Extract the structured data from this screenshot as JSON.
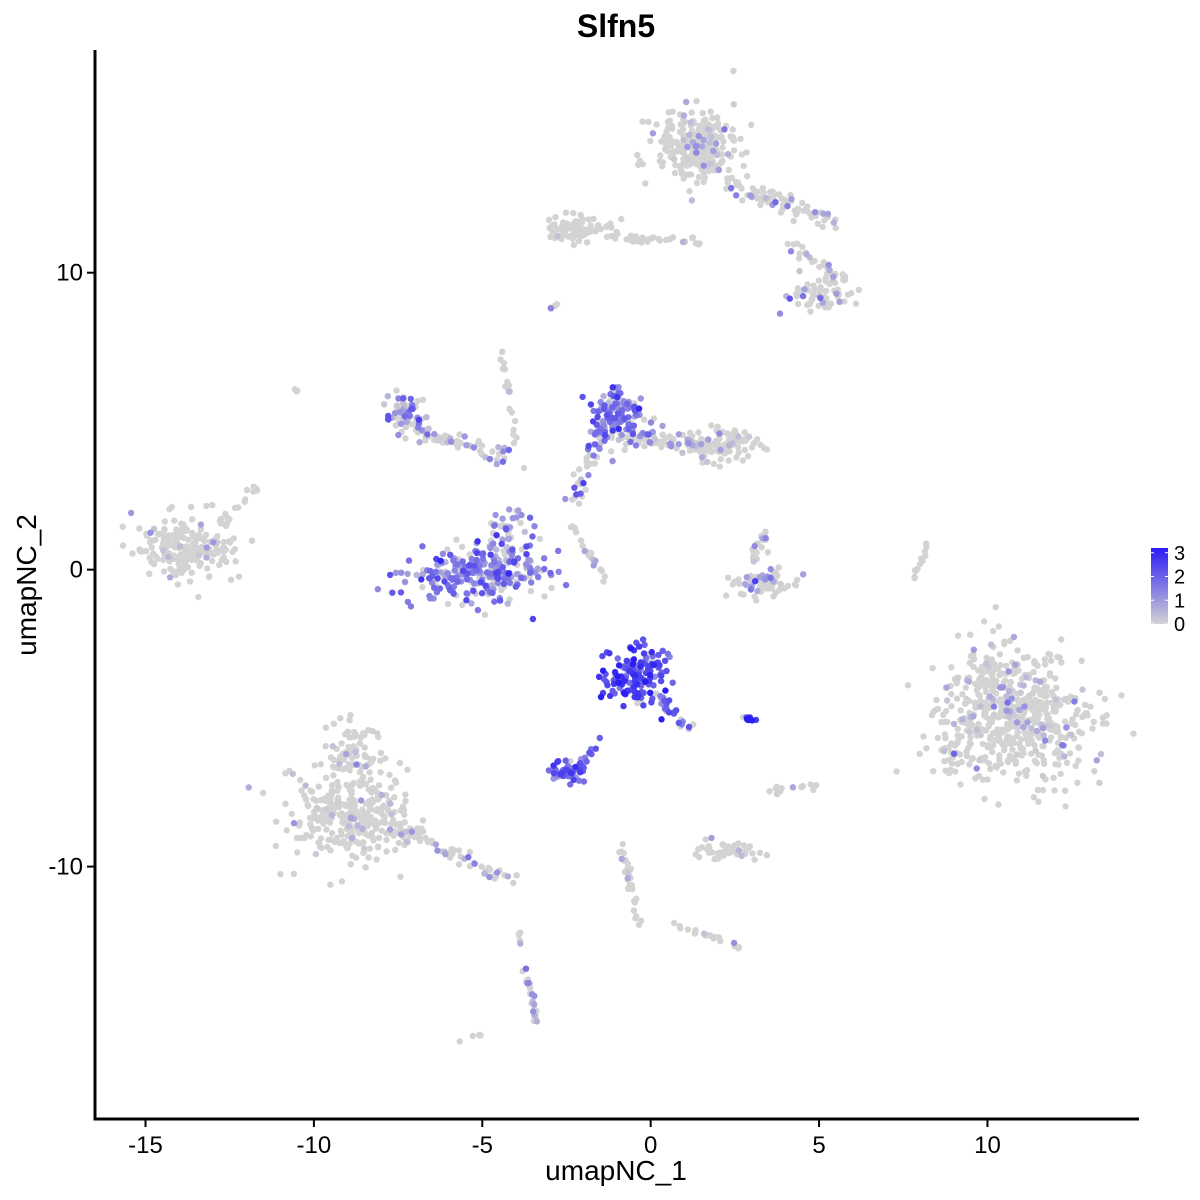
{
  "chart_data": {
    "type": "scatter",
    "title": "Slfn5",
    "xlabel": "umapNC_1",
    "ylabel": "umapNC_2",
    "xlim": [
      -16.5,
      14.5
    ],
    "ylim": [
      -18.5,
      17.5
    ],
    "x_ticks": [
      {
        "value": -15,
        "label": "-15"
      },
      {
        "value": -10,
        "label": "-10"
      },
      {
        "value": -5,
        "label": "-5"
      },
      {
        "value": 0,
        "label": "0"
      },
      {
        "value": 5,
        "label": "5"
      },
      {
        "value": 10,
        "label": "10"
      }
    ],
    "y_ticks": [
      {
        "value": 10,
        "label": "10"
      },
      {
        "value": 0,
        "label": "0"
      },
      {
        "value": -10,
        "label": "-10"
      }
    ],
    "grid": false,
    "legend": {
      "placement": "right",
      "type": "colorbar",
      "range": [
        0,
        3.2
      ],
      "ticks": [
        {
          "value": 3,
          "label": "3"
        },
        {
          "value": 2,
          "label": "2"
        },
        {
          "value": 1,
          "label": "1"
        },
        {
          "value": 0,
          "label": "0"
        }
      ],
      "low_color": "#d3d3d3",
      "high_color": "#2a1cf5"
    },
    "clusters": [
      {
        "id": "left-blob",
        "cx": -13.8,
        "cy": 0.8,
        "rx": 1.4,
        "ry": 0.9,
        "n": 200,
        "expr": 0.1,
        "kind": "blob"
      },
      {
        "id": "left-blob-tail",
        "x0": -12.8,
        "y0": 1.5,
        "x1": -11.7,
        "y1": 2.8,
        "n": 18,
        "expr": 0.05,
        "kind": "line",
        "w": 0.2
      },
      {
        "id": "bottom-left-blob",
        "cx": -9.0,
        "cy": -8.3,
        "rx": 1.6,
        "ry": 1.4,
        "n": 300,
        "expr": 0.1,
        "kind": "blob"
      },
      {
        "id": "bottom-left-top",
        "cx": -8.8,
        "cy": -6.2,
        "rx": 0.8,
        "ry": 1.0,
        "n": 70,
        "expr": 0.08,
        "kind": "blob"
      },
      {
        "id": "bottom-left-tail",
        "x0": -7.8,
        "y0": -8.5,
        "x1": -4.3,
        "y1": -10.4,
        "n": 70,
        "expr": 0.6,
        "kind": "line",
        "w": 0.35
      },
      {
        "id": "curved-blob",
        "cx": -5.2,
        "cy": -0.2,
        "rx": 1.8,
        "ry": 0.8,
        "n": 260,
        "expr": 1.5,
        "kind": "blob"
      },
      {
        "id": "curved-blob-right",
        "cx": -4.3,
        "cy": 1.0,
        "rx": 0.7,
        "ry": 1.0,
        "n": 60,
        "expr": 1.2,
        "kind": "blob"
      },
      {
        "id": "upper-left-arm",
        "cx": -7.3,
        "cy": 5.2,
        "rx": 0.6,
        "ry": 0.7,
        "n": 60,
        "expr": 1.1,
        "kind": "blob"
      },
      {
        "id": "upper-left-arm-line",
        "x0": -7.0,
        "y0": 4.8,
        "x1": -4.3,
        "y1": 3.7,
        "n": 60,
        "expr": 0.6,
        "kind": "line",
        "w": 0.35
      },
      {
        "id": "upper-left-stem",
        "x0": -4.5,
        "y0": 7.5,
        "x1": -3.8,
        "y1": 3.3,
        "n": 20,
        "expr": 0.2,
        "kind": "line",
        "w": 0.15
      },
      {
        "id": "center-top",
        "cx": -1.0,
        "cy": 5.3,
        "rx": 0.7,
        "ry": 0.9,
        "n": 130,
        "expr": 1.5,
        "kind": "blob"
      },
      {
        "id": "center-top-right",
        "cx": 2.1,
        "cy": 4.2,
        "rx": 1.0,
        "ry": 0.5,
        "n": 110,
        "expr": 0.2,
        "kind": "blob"
      },
      {
        "id": "center-top-arm",
        "x0": -1.0,
        "y0": 4.5,
        "x1": 1.5,
        "y1": 4.2,
        "n": 60,
        "expr": 0.9,
        "kind": "line",
        "w": 0.4
      },
      {
        "id": "center-top-down",
        "x0": -1.5,
        "y0": 4.8,
        "x1": -2.3,
        "y1": 2.3,
        "n": 40,
        "expr": 1.3,
        "kind": "line",
        "w": 0.3
      },
      {
        "id": "center-streak",
        "x0": -2.3,
        "y0": 1.5,
        "x1": -1.3,
        "y1": -0.5,
        "n": 18,
        "expr": 0.5,
        "kind": "line",
        "w": 0.1
      },
      {
        "id": "right-small",
        "cx": 3.3,
        "cy": -0.4,
        "rx": 0.9,
        "ry": 0.5,
        "n": 70,
        "expr": 0.6,
        "kind": "blob"
      },
      {
        "id": "right-small-up",
        "x0": 3.0,
        "y0": 0.3,
        "x1": 3.4,
        "y1": 1.3,
        "n": 20,
        "expr": 0.5,
        "kind": "line",
        "w": 0.2
      },
      {
        "id": "far-right-blob",
        "cx": 10.7,
        "cy": -4.9,
        "rx": 2.0,
        "ry": 2.0,
        "n": 600,
        "expr": 0.3,
        "kind": "blob"
      },
      {
        "id": "far-right-streak",
        "x0": 7.8,
        "y0": -0.3,
        "x1": 8.2,
        "y1": 0.9,
        "n": 12,
        "expr": 0.05,
        "kind": "line",
        "w": 0.08
      },
      {
        "id": "top-right-main",
        "cx": 1.3,
        "cy": 14.2,
        "rx": 1.1,
        "ry": 1.1,
        "n": 280,
        "expr": 0.3,
        "kind": "blob"
      },
      {
        "id": "top-right-arm",
        "x0": 2.2,
        "y0": 13.0,
        "x1": 5.6,
        "y1": 11.7,
        "n": 70,
        "expr": 0.4,
        "kind": "line",
        "w": 0.4
      },
      {
        "id": "top-right-lower",
        "cx": 5.0,
        "cy": 9.3,
        "rx": 0.9,
        "ry": 0.6,
        "n": 60,
        "expr": 0.6,
        "kind": "blob"
      },
      {
        "id": "top-right-line",
        "x0": 4.2,
        "y0": 10.9,
        "x1": 5.9,
        "y1": 9.6,
        "n": 30,
        "expr": 0.3,
        "kind": "line",
        "w": 0.3
      },
      {
        "id": "top-middle-arm",
        "cx": -2.1,
        "cy": 11.5,
        "rx": 0.9,
        "ry": 0.4,
        "n": 80,
        "expr": 0.1,
        "kind": "blob"
      },
      {
        "id": "top-middle-link",
        "x0": -1.0,
        "y0": 11.2,
        "x1": 1.6,
        "y1": 11.0,
        "n": 30,
        "expr": 0.1,
        "kind": "line",
        "w": 0.2
      },
      {
        "id": "lower-center-blob",
        "cx": -0.5,
        "cy": -3.6,
        "rx": 0.8,
        "ry": 0.9,
        "n": 150,
        "expr": 2.3,
        "kind": "blob"
      },
      {
        "id": "lower-center-arm",
        "x0": 0.2,
        "y0": -4.2,
        "x1": 1.2,
        "y1": -5.5,
        "n": 25,
        "expr": 1.8,
        "kind": "line",
        "w": 0.2
      },
      {
        "id": "lower-left-small",
        "cx": -2.5,
        "cy": -6.8,
        "rx": 0.5,
        "ry": 0.3,
        "n": 50,
        "expr": 2.0,
        "kind": "blob"
      },
      {
        "id": "lower-left-small-arm",
        "x0": -2.1,
        "y0": -6.6,
        "x1": -1.5,
        "y1": -5.7,
        "n": 12,
        "expr": 1.6,
        "kind": "line",
        "w": 0.15
      },
      {
        "id": "tiny-bright",
        "cx": 2.9,
        "cy": -5.0,
        "rx": 0.15,
        "ry": 0.08,
        "n": 10,
        "expr": 3.0,
        "kind": "blob"
      },
      {
        "id": "small-blob-mid",
        "cx": 2.3,
        "cy": -9.5,
        "rx": 0.8,
        "ry": 0.3,
        "n": 50,
        "expr": 0.2,
        "kind": "blob"
      },
      {
        "id": "bottom-streak-1",
        "x0": -0.9,
        "y0": -9.2,
        "x1": -0.3,
        "y1": -12.0,
        "n": 30,
        "expr": 0.4,
        "kind": "line",
        "w": 0.15
      },
      {
        "id": "bottom-streak-2",
        "x0": 0.4,
        "y0": -11.8,
        "x1": 2.6,
        "y1": -12.7,
        "n": 20,
        "expr": 0.15,
        "kind": "line",
        "w": 0.15
      },
      {
        "id": "bottom-streak-3",
        "x0": -3.7,
        "y0": -13.5,
        "x1": -3.4,
        "y1": -15.2,
        "n": 30,
        "expr": 0.8,
        "kind": "line",
        "w": 0.15
      },
      {
        "id": "bottom-streak-4",
        "x0": -3.9,
        "y0": -11.8,
        "x1": -3.9,
        "y1": -12.6,
        "n": 5,
        "expr": 0.3,
        "kind": "line",
        "w": 0.05
      },
      {
        "id": "scatter-right-mid",
        "x0": 3.2,
        "y0": -7.5,
        "x1": 5.2,
        "y1": -7.2,
        "n": 12,
        "expr": 0.05,
        "kind": "line",
        "w": 0.15
      },
      {
        "id": "left-isolated",
        "x0": -10.6,
        "y0": 6.1,
        "x1": -10.5,
        "y1": 6.0,
        "n": 3,
        "expr": 0.4,
        "kind": "line",
        "w": 0.02
      },
      {
        "id": "top-isolated",
        "x0": -3.0,
        "y0": 8.8,
        "x1": -2.7,
        "y1": 9.0,
        "n": 4,
        "expr": 0.3,
        "kind": "line",
        "w": 0.05
      },
      {
        "id": "bottom-isolated",
        "x0": -6.2,
        "y0": -16.0,
        "x1": -4.9,
        "y1": -15.6,
        "n": 4,
        "expr": 0.1,
        "kind": "line",
        "w": 0.05
      }
    ]
  }
}
